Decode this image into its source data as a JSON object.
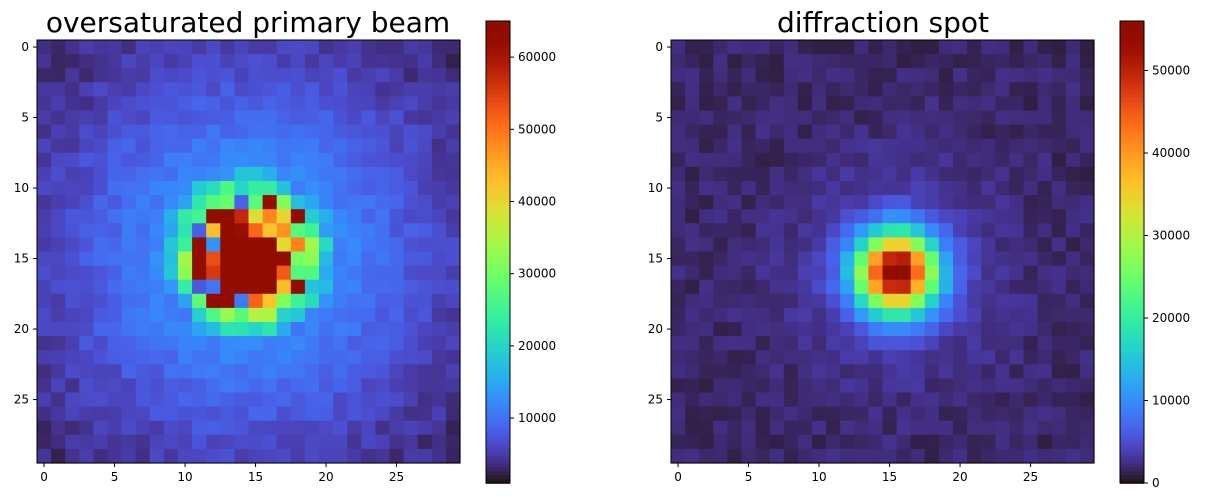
{
  "chart_data": [
    {
      "type": "heatmap",
      "title": "oversaturated primary beam",
      "xlabel": "",
      "ylabel": "",
      "shape": [
        30,
        30
      ],
      "x_ticks": [
        0,
        5,
        10,
        15,
        20,
        25
      ],
      "y_ticks": [
        0,
        5,
        10,
        15,
        20,
        25
      ],
      "colormap": "turbo",
      "colorbar": {
        "min": 1000,
        "max": 65000,
        "ticks": [
          10000,
          20000,
          30000,
          40000,
          50000,
          60000
        ]
      },
      "model": {
        "description_of_values": "approximate intensity per pixel",
        "center": [
          14.5,
          14.8
        ],
        "saturated_center": [
          14.5,
          15.5
        ],
        "saturated_radius": 2.2,
        "saturated_value": 65000,
        "ring_inner_radius": 2.2,
        "ring_outer_radius": 6.3,
        "ring_value_range": [
          8000,
          62000
        ],
        "halo_amplitude": 12000,
        "halo_sigma": 9,
        "background": 2200
      }
    },
    {
      "type": "heatmap",
      "title": "diffraction spot",
      "xlabel": "",
      "ylabel": "",
      "shape": [
        30,
        30
      ],
      "x_ticks": [
        0,
        5,
        10,
        15,
        20,
        25
      ],
      "y_ticks": [
        0,
        5,
        10,
        15,
        20,
        25
      ],
      "colormap": "turbo",
      "colorbar": {
        "min": 0,
        "max": 56000,
        "ticks": [
          0,
          10000,
          20000,
          30000,
          40000,
          50000
        ]
      },
      "model": {
        "description_of_values": "approximate intensity per pixel",
        "center": [
          15.5,
          16.0
        ],
        "peak": 54000,
        "sigma": 1.9,
        "halo_amplitude": 3000,
        "halo_sigma": 5,
        "background": 1500
      }
    }
  ]
}
